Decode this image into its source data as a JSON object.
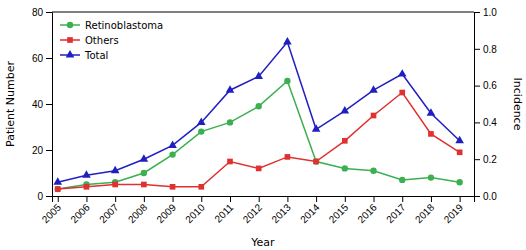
{
  "chart_data": {
    "type": "line",
    "x": [
      2005,
      2006,
      2007,
      2008,
      2009,
      2010,
      2011,
      2012,
      2013,
      2014,
      2015,
      2016,
      2017,
      2018,
      2019
    ],
    "series": [
      {
        "name": "Retinoblastoma",
        "color": "#3cb050",
        "marker": "circle",
        "values": [
          3,
          5,
          6,
          10,
          18,
          28,
          32,
          39,
          50,
          15,
          12,
          11,
          7,
          8,
          6
        ]
      },
      {
        "name": "Others",
        "color": "#e03030",
        "marker": "square",
        "values": [
          3,
          4,
          5,
          5,
          4,
          4,
          15,
          12,
          17,
          15,
          24,
          35,
          45,
          27,
          19
        ]
      },
      {
        "name": "Total",
        "color": "#2020c0",
        "marker": "triangle",
        "values": [
          6,
          9,
          11,
          16,
          22,
          32,
          46,
          52,
          67,
          29,
          37,
          46,
          53,
          36,
          24
        ]
      }
    ],
    "xlabel": "Year",
    "ylabel": "Patient Number",
    "y2label": "Incidence",
    "xlim": [
      2004.8,
      2019.5
    ],
    "xticks": [
      2005,
      2006,
      2007,
      2008,
      2009,
      2010,
      2011,
      2012,
      2013,
      2014,
      2015,
      2016,
      2017,
      2018,
      2019
    ],
    "ylim": [
      0,
      80
    ],
    "yticks": [
      0,
      20,
      40,
      60,
      80
    ],
    "y2lim": [
      0,
      1.0
    ],
    "y2ticks": [
      {
        "value": 0,
        "label": "0.0"
      },
      0.2,
      0.4,
      0.6,
      0.8,
      {
        "value": 1,
        "label": "1.0"
      }
    ],
    "legend": "upper left"
  }
}
